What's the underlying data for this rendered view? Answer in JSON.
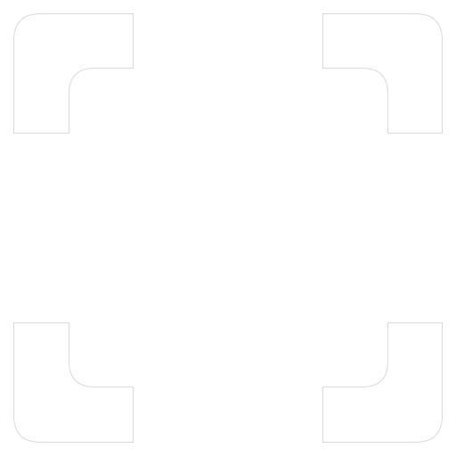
{
  "icon": {
    "name": "fullscreen-frame-icon",
    "colors": {
      "background": "#ffffff",
      "bracket_fill": "#ffffff",
      "bracket_stroke": "#d9d9d9"
    }
  }
}
